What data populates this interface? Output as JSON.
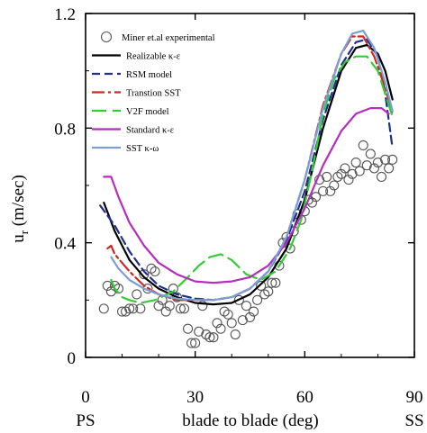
{
  "chart_data": {
    "type": "line",
    "title": "",
    "xlabel": "blade to blade (deg)",
    "ylabel": "u_r (m/sec)",
    "ylabel_main": "u",
    "ylabel_sub": "r",
    "ylabel_unit": " (m/sec)",
    "x_end_labels": {
      "left": "PS",
      "right": "SS"
    },
    "xlim": [
      0,
      90
    ],
    "ylim": [
      0,
      1.2
    ],
    "xticks": [
      0,
      30,
      60,
      90
    ],
    "xtick_labels": [
      "0",
      "30",
      "60",
      "90"
    ],
    "yticks": [
      0,
      0.4,
      0.8,
      1.2
    ],
    "ytick_labels": [
      "0",
      "0.4",
      "0.8",
      "1.2"
    ],
    "grid": false,
    "legend_position": "top-left",
    "colors": {
      "experimental": "#555555",
      "realizable": "#000000",
      "rsm": "#1f2f8f",
      "transition_sst": "#cc2a1e",
      "v2f": "#33cc33",
      "standard": "#b52dbf",
      "sst": "#7a9fd6"
    },
    "series": [
      {
        "name": "Miner et.al experimental",
        "style": "markers",
        "marker": "circle-open",
        "color": "#555555",
        "points": [
          [
            5,
            0.17
          ],
          [
            6,
            0.25
          ],
          [
            7,
            0.23
          ],
          [
            8,
            0.25
          ],
          [
            9,
            0.24
          ],
          [
            10,
            0.16
          ],
          [
            11,
            0.16
          ],
          [
            12,
            0.17
          ],
          [
            13,
            0.17
          ],
          [
            14,
            0.22
          ],
          [
            15,
            0.17
          ],
          [
            16,
            0.29
          ],
          [
            17,
            0.24
          ],
          [
            18,
            0.31
          ],
          [
            19,
            0.3
          ],
          [
            20,
            0.18
          ],
          [
            21,
            0.2
          ],
          [
            22,
            0.16
          ],
          [
            23,
            0.18
          ],
          [
            24,
            0.24
          ],
          [
            25,
            0.21
          ],
          [
            26,
            0.17
          ],
          [
            27,
            0.17
          ],
          [
            28,
            0.1
          ],
          [
            29,
            0.05
          ],
          [
            30,
            0.05
          ],
          [
            31,
            0.09
          ],
          [
            32,
            0.18
          ],
          [
            33,
            0.08
          ],
          [
            34,
            0.07
          ],
          [
            35,
            0.07
          ],
          [
            36,
            0.12
          ],
          [
            37,
            0.1
          ],
          [
            38,
            0.16
          ],
          [
            39,
            0.15
          ],
          [
            40,
            0.12
          ],
          [
            41,
            0.08
          ],
          [
            42,
            0.2
          ],
          [
            43,
            0.13
          ],
          [
            44,
            0.18
          ],
          [
            45,
            0.14
          ],
          [
            46,
            0.16
          ],
          [
            47,
            0.2
          ],
          [
            48,
            0.25
          ],
          [
            49,
            0.22
          ],
          [
            50,
            0.23
          ],
          [
            51,
            0.26
          ],
          [
            52,
            0.26
          ],
          [
            53,
            0.32
          ],
          [
            54,
            0.4
          ],
          [
            55,
            0.42
          ],
          [
            56,
            0.38
          ],
          [
            57,
            0.44
          ],
          [
            58,
            0.5
          ],
          [
            59,
            0.48
          ],
          [
            60,
            0.51
          ],
          [
            61,
            0.55
          ],
          [
            62,
            0.54
          ],
          [
            63,
            0.56
          ],
          [
            64,
            0.62
          ],
          [
            65,
            0.58
          ],
          [
            66,
            0.63
          ],
          [
            67,
            0.58
          ],
          [
            68,
            0.6
          ],
          [
            69,
            0.63
          ],
          [
            70,
            0.64
          ],
          [
            71,
            0.66
          ],
          [
            72,
            0.62
          ],
          [
            73,
            0.64
          ],
          [
            74,
            0.68
          ],
          [
            75,
            0.65
          ],
          [
            76,
            0.74
          ],
          [
            77,
            0.67
          ],
          [
            78,
            0.71
          ],
          [
            79,
            0.66
          ],
          [
            80,
            0.68
          ],
          [
            81,
            0.63
          ],
          [
            82,
            0.69
          ],
          [
            83,
            0.66
          ],
          [
            84,
            0.69
          ]
        ]
      },
      {
        "name": "Realizable κ-ε",
        "style": "solid",
        "color": "#000000",
        "points": [
          [
            5,
            0.54
          ],
          [
            8,
            0.44
          ],
          [
            12,
            0.34
          ],
          [
            16,
            0.28
          ],
          [
            20,
            0.24
          ],
          [
            25,
            0.21
          ],
          [
            30,
            0.19
          ],
          [
            35,
            0.185
          ],
          [
            40,
            0.19
          ],
          [
            45,
            0.22
          ],
          [
            50,
            0.28
          ],
          [
            55,
            0.38
          ],
          [
            60,
            0.55
          ],
          [
            65,
            0.8
          ],
          [
            70,
            1.0
          ],
          [
            74,
            1.08
          ],
          [
            77,
            1.09
          ],
          [
            80,
            1.06
          ],
          [
            82,
            1.0
          ],
          [
            84,
            0.9
          ]
        ]
      },
      {
        "name": "RSM model",
        "style": "dashed",
        "color": "#1f2f8f",
        "points": [
          [
            4,
            0.53
          ],
          [
            8,
            0.46
          ],
          [
            12,
            0.37
          ],
          [
            16,
            0.3
          ],
          [
            20,
            0.25
          ],
          [
            25,
            0.22
          ],
          [
            30,
            0.205
          ],
          [
            35,
            0.2
          ],
          [
            40,
            0.21
          ],
          [
            45,
            0.24
          ],
          [
            50,
            0.3
          ],
          [
            55,
            0.41
          ],
          [
            60,
            0.58
          ],
          [
            65,
            0.83
          ],
          [
            70,
            1.02
          ],
          [
            74,
            1.1
          ],
          [
            77,
            1.11
          ],
          [
            80,
            1.05
          ],
          [
            82,
            0.92
          ],
          [
            84,
            0.73
          ]
        ]
      },
      {
        "name": "Transtion SST",
        "style": "dash-dot",
        "color": "#cc2a1e",
        "points": [
          [
            6,
            0.38
          ],
          [
            7,
            0.39
          ],
          [
            8,
            0.36
          ],
          [
            12,
            0.3
          ],
          [
            16,
            0.25
          ],
          [
            20,
            0.22
          ],
          [
            25,
            0.2
          ],
          [
            30,
            0.2
          ],
          [
            35,
            0.2
          ],
          [
            40,
            0.21
          ],
          [
            45,
            0.24
          ],
          [
            50,
            0.3
          ],
          [
            55,
            0.42
          ],
          [
            60,
            0.62
          ],
          [
            65,
            0.88
          ],
          [
            70,
            1.06
          ],
          [
            73,
            1.12
          ],
          [
            76,
            1.12
          ],
          [
            79,
            1.05
          ],
          [
            82,
            0.94
          ],
          [
            84,
            0.85
          ]
        ]
      },
      {
        "name": "V2F model",
        "style": "long-dash",
        "color": "#33cc33",
        "points": [
          [
            7,
            0.27
          ],
          [
            8,
            0.24
          ],
          [
            10,
            0.21
          ],
          [
            12,
            0.2
          ],
          [
            15,
            0.19
          ],
          [
            19,
            0.2
          ],
          [
            24,
            0.23
          ],
          [
            28,
            0.28
          ],
          [
            31,
            0.32
          ],
          [
            34,
            0.35
          ],
          [
            37,
            0.36
          ],
          [
            40,
            0.34
          ],
          [
            44,
            0.29
          ],
          [
            48,
            0.27
          ],
          [
            52,
            0.3
          ],
          [
            56,
            0.38
          ],
          [
            59,
            0.48
          ],
          [
            62,
            0.65
          ],
          [
            65,
            0.85
          ],
          [
            68,
            0.97
          ],
          [
            71,
            1.03
          ],
          [
            74,
            1.05
          ],
          [
            77,
            1.05
          ],
          [
            80,
            1.0
          ],
          [
            82,
            0.92
          ],
          [
            84,
            0.84
          ]
        ]
      },
      {
        "name": "Standard κ-ε",
        "style": "solid",
        "color": "#b52dbf",
        "points": [
          [
            5,
            0.63
          ],
          [
            7,
            0.63
          ],
          [
            9,
            0.56
          ],
          [
            12,
            0.47
          ],
          [
            16,
            0.39
          ],
          [
            20,
            0.33
          ],
          [
            25,
            0.29
          ],
          [
            30,
            0.265
          ],
          [
            35,
            0.26
          ],
          [
            40,
            0.265
          ],
          [
            45,
            0.28
          ],
          [
            50,
            0.32
          ],
          [
            55,
            0.4
          ],
          [
            60,
            0.52
          ],
          [
            65,
            0.67
          ],
          [
            70,
            0.79
          ],
          [
            74,
            0.85
          ],
          [
            78,
            0.87
          ],
          [
            81,
            0.87
          ],
          [
            83,
            0.85
          ]
        ]
      },
      {
        "name": "SST κ-ω",
        "style": "solid",
        "color": "#7a9fd6",
        "points": [
          [
            7,
            0.35
          ],
          [
            9,
            0.31
          ],
          [
            12,
            0.27
          ],
          [
            16,
            0.24
          ],
          [
            20,
            0.22
          ],
          [
            25,
            0.205
          ],
          [
            30,
            0.2
          ],
          [
            35,
            0.2
          ],
          [
            40,
            0.21
          ],
          [
            45,
            0.24
          ],
          [
            50,
            0.3
          ],
          [
            55,
            0.42
          ],
          [
            60,
            0.62
          ],
          [
            65,
            0.87
          ],
          [
            70,
            1.06
          ],
          [
            73,
            1.13
          ],
          [
            76,
            1.14
          ],
          [
            79,
            1.08
          ],
          [
            82,
            0.96
          ],
          [
            84,
            0.86
          ]
        ]
      }
    ]
  }
}
